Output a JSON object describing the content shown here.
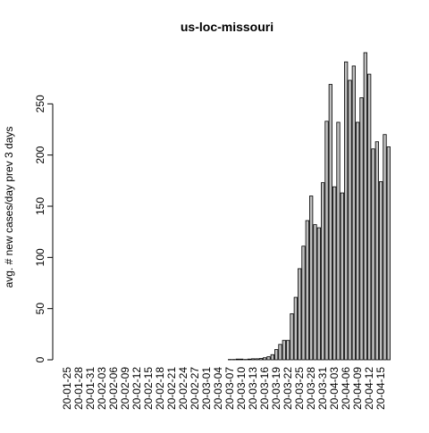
{
  "chart_data": {
    "type": "bar",
    "title": "us-loc-missouri",
    "y_label": "avg. # new cases/day prev  3  days",
    "categories": [
      "20-01-25",
      null,
      null,
      "20-01-28",
      null,
      null,
      "20-01-31",
      null,
      null,
      "20-02-03",
      null,
      null,
      "20-02-06",
      null,
      null,
      "20-02-09",
      null,
      null,
      "20-02-12",
      null,
      null,
      "20-02-15",
      null,
      null,
      "20-02-18",
      null,
      null,
      "20-02-21",
      null,
      null,
      "20-02-24",
      null,
      null,
      "20-02-27",
      null,
      null,
      "20-03-01",
      null,
      null,
      "20-03-04",
      null,
      null,
      "20-03-07",
      null,
      null,
      "20-03-10",
      null,
      null,
      "20-03-13",
      null,
      null,
      "20-03-16",
      null,
      null,
      "20-03-19",
      null,
      null,
      "20-03-22",
      null,
      null,
      "20-03-25",
      null,
      null,
      "20-03-28",
      null,
      null,
      "20-03-31",
      null,
      null,
      "20-04-03",
      null,
      null,
      "20-04-06",
      null,
      null,
      "20-04-09",
      null,
      null,
      "20-04-12",
      null,
      null,
      "20-04-15",
      null,
      null
    ],
    "values": [
      0,
      0,
      0,
      0,
      0,
      0,
      0,
      0,
      0,
      0,
      0,
      0,
      0,
      0,
      0,
      0,
      0,
      0,
      0,
      0,
      0,
      0,
      0,
      0,
      0,
      0,
      0,
      0,
      0,
      0,
      0,
      0,
      0,
      0,
      0,
      0,
      0,
      0,
      0,
      0,
      0,
      0,
      0.3,
      0.3,
      0.7,
      0.7,
      0.3,
      0.7,
      1,
      1,
      1.3,
      2,
      3,
      5,
      10,
      15,
      19,
      19,
      45,
      61,
      89,
      111,
      136,
      160,
      132,
      129,
      173,
      233,
      269,
      169,
      232,
      163,
      291,
      273,
      287,
      232,
      256,
      300,
      279,
      206,
      213,
      174,
      220,
      208
    ],
    "color": "#bebebe",
    "ylim": [
      0,
      300
    ],
    "yticks": [
      0,
      50,
      100,
      150,
      200,
      250
    ]
  }
}
